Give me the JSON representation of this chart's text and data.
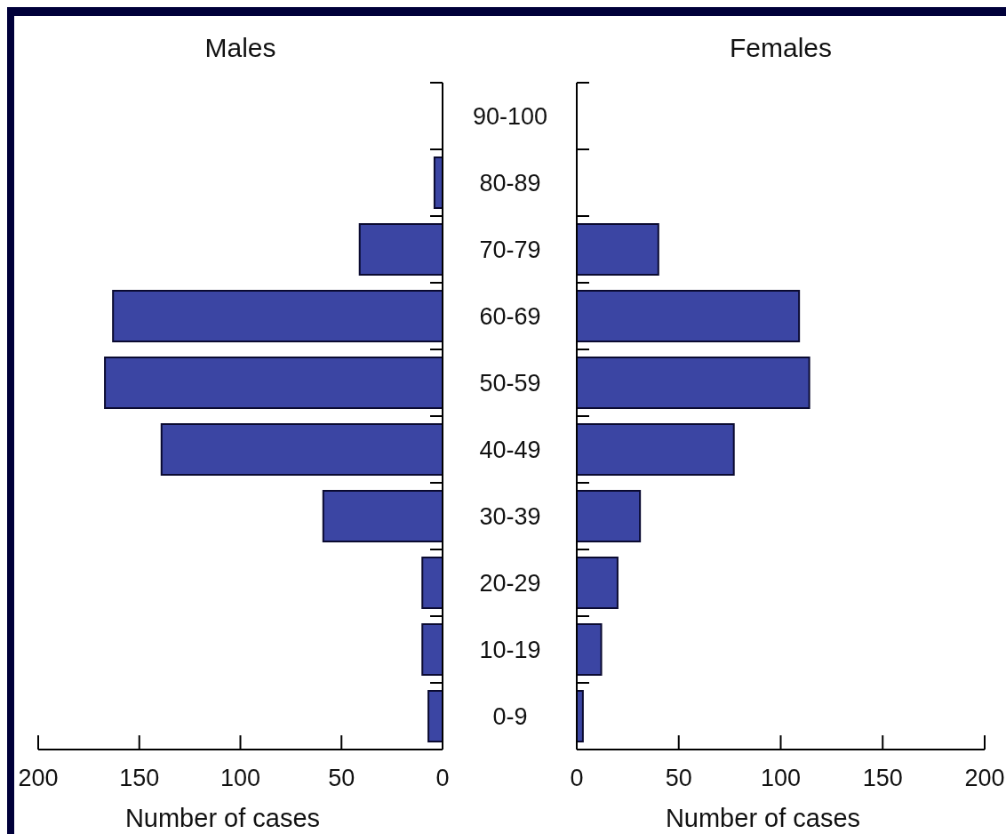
{
  "chart_data": [
    {
      "type": "bar",
      "orientation": "horizontal",
      "title": "Males",
      "xlabel": "Number of cases",
      "categories": [
        "90-100",
        "80-89",
        "70-79",
        "60-69",
        "50-59",
        "40-49",
        "30-39",
        "20-29",
        "10-19",
        "0-9"
      ],
      "values": [
        0,
        4,
        41,
        163,
        167,
        139,
        59,
        10,
        10,
        7
      ],
      "color": "#3b45a3",
      "xlim": [
        200,
        0
      ],
      "xticks": [
        200,
        150,
        100,
        50,
        0
      ],
      "grid": false
    },
    {
      "type": "bar",
      "orientation": "horizontal",
      "title": "Females",
      "xlabel": "Number of cases",
      "categories": [
        "90-100",
        "80-89",
        "70-79",
        "60-69",
        "50-59",
        "40-49",
        "30-39",
        "20-29",
        "10-19",
        "0-9"
      ],
      "values": [
        0,
        0,
        40,
        109,
        114,
        77,
        31,
        20,
        12,
        3
      ],
      "color": "#3b45a3",
      "xlim": [
        0,
        200
      ],
      "xticks": [
        0,
        50,
        100,
        150,
        200
      ],
      "grid": false,
      "tick_labels": "x"
    }
  ]
}
